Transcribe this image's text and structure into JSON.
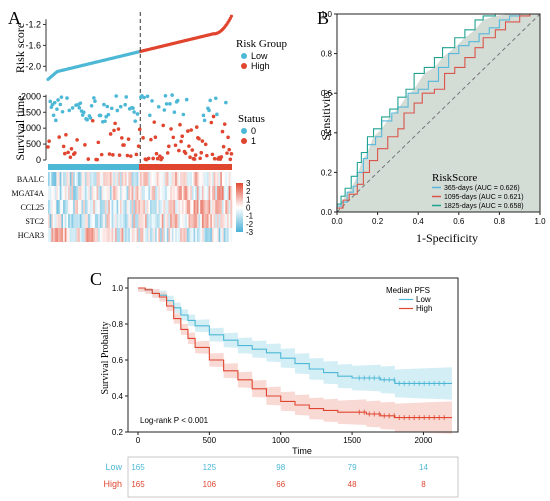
{
  "panels": {
    "a": "A",
    "b": "B",
    "c": "C"
  },
  "colors": {
    "low": "#4db8d6",
    "high": "#e0452f",
    "roc365": "#56b8dc",
    "roc1095": "#d9554a",
    "roc1825": "#20a290",
    "survLowBand": "#cdebf5",
    "survHighBand": "#f8d2cc",
    "heatLow": "#4ab0d7",
    "heatMid": "#ffffff",
    "heatHigh": "#e24a34",
    "rocFill": "#cfd8d2"
  },
  "chart_data": [
    {
      "type": "scatter",
      "panel": "A-top",
      "ylabel": "Risk score",
      "yticks": [
        "-1.2",
        "-1.6",
        "-2.0"
      ],
      "ylim": [
        -2.3,
        -1.0
      ],
      "n_samples": 330,
      "cutoff_index": 165,
      "legend_title": "Risk Group",
      "legend": [
        "Low",
        "High"
      ],
      "legend_position": "top-right"
    },
    {
      "type": "scatter",
      "panel": "A-middle",
      "ylabel": "Survival time",
      "yticks": [
        "2000",
        "1500",
        "1000",
        "500",
        "0"
      ],
      "ylim": [
        0,
        2200
      ],
      "legend_title": "Status",
      "legend": [
        "0",
        "1"
      ]
    },
    {
      "type": "heatmap",
      "panel": "A-bottom",
      "genes": [
        "BAALC",
        "MGAT4A",
        "CCL25",
        "STC2",
        "HCAR3"
      ],
      "scale_ticks": [
        "3",
        "2",
        "1",
        "0",
        "-1",
        "-2",
        "-3"
      ],
      "scale_range": [
        -3,
        3
      ]
    },
    {
      "type": "line",
      "panel": "B",
      "xlabel": "1-Specificity",
      "ylabel": "Sensitivity",
      "xticks": [
        "0.0",
        "0.2",
        "0.4",
        "0.6",
        "0.8",
        "1.0"
      ],
      "yticks": [
        "0.0",
        "0.2",
        "0.4",
        "0.6",
        "0.8",
        "1.0"
      ],
      "xlim": [
        0,
        1
      ],
      "ylim": [
        0,
        1
      ],
      "legend_title": "RiskScore",
      "legend_position": "bottom-right",
      "series": [
        {
          "name": "365-days (AUC = 0.626)",
          "points": [
            [
              0,
              0
            ],
            [
              0.02,
              0.03
            ],
            [
              0.05,
              0.05
            ],
            [
              0.08,
              0.1
            ],
            [
              0.1,
              0.13
            ],
            [
              0.13,
              0.2
            ],
            [
              0.15,
              0.27
            ],
            [
              0.19,
              0.34
            ],
            [
              0.22,
              0.38
            ],
            [
              0.27,
              0.46
            ],
            [
              0.3,
              0.5
            ],
            [
              0.35,
              0.53
            ],
            [
              0.4,
              0.6
            ],
            [
              0.45,
              0.62
            ],
            [
              0.5,
              0.66
            ],
            [
              0.55,
              0.73
            ],
            [
              0.6,
              0.8
            ],
            [
              0.65,
              0.84
            ],
            [
              0.7,
              0.86
            ],
            [
              0.75,
              0.9
            ],
            [
              0.8,
              0.93
            ],
            [
              0.85,
              0.97
            ],
            [
              0.9,
              0.99
            ],
            [
              1,
              1
            ]
          ]
        },
        {
          "name": "1095-days (AUC = 0.621)",
          "points": [
            [
              0,
              0
            ],
            [
              0.03,
              0.02
            ],
            [
              0.06,
              0.06
            ],
            [
              0.1,
              0.09
            ],
            [
              0.13,
              0.14
            ],
            [
              0.16,
              0.2
            ],
            [
              0.2,
              0.26
            ],
            [
              0.25,
              0.32
            ],
            [
              0.3,
              0.38
            ],
            [
              0.33,
              0.42
            ],
            [
              0.38,
              0.5
            ],
            [
              0.42,
              0.55
            ],
            [
              0.48,
              0.6
            ],
            [
              0.53,
              0.62
            ],
            [
              0.58,
              0.7
            ],
            [
              0.63,
              0.73
            ],
            [
              0.68,
              0.78
            ],
            [
              0.72,
              0.83
            ],
            [
              0.78,
              0.88
            ],
            [
              0.83,
              0.92
            ],
            [
              0.9,
              0.96
            ],
            [
              0.95,
              0.99
            ],
            [
              1,
              1
            ]
          ]
        },
        {
          "name": "1825-days (AUC = 0.658)",
          "points": [
            [
              0,
              0
            ],
            [
              0.02,
              0.04
            ],
            [
              0.04,
              0.08
            ],
            [
              0.07,
              0.12
            ],
            [
              0.1,
              0.18
            ],
            [
              0.12,
              0.25
            ],
            [
              0.15,
              0.3
            ],
            [
              0.18,
              0.38
            ],
            [
              0.22,
              0.42
            ],
            [
              0.26,
              0.48
            ],
            [
              0.3,
              0.52
            ],
            [
              0.34,
              0.58
            ],
            [
              0.38,
              0.62
            ],
            [
              0.43,
              0.7
            ],
            [
              0.48,
              0.73
            ],
            [
              0.52,
              0.78
            ],
            [
              0.58,
              0.83
            ],
            [
              0.63,
              0.88
            ],
            [
              0.68,
              0.92
            ],
            [
              0.72,
              0.97
            ],
            [
              0.78,
              0.99
            ],
            [
              0.85,
              1
            ],
            [
              1,
              1
            ]
          ]
        }
      ]
    },
    {
      "type": "line",
      "panel": "C",
      "xlabel": "Time",
      "ylabel": "Survival Probality",
      "xticks": [
        "0",
        "500",
        "1000",
        "1500",
        "2000"
      ],
      "yticks": [
        "1.0",
        "0.8",
        "0.6",
        "0.4",
        "0.2"
      ],
      "xlim": [
        0,
        2200
      ],
      "ylim": [
        0.2,
        1.0
      ],
      "legend_title": "Median PFS",
      "legend_position": "top-right",
      "annotation": "Log-rank P < 0.001",
      "series": [
        {
          "name": "Low",
          "points": [
            [
              0,
              1
            ],
            [
              50,
              0.99
            ],
            [
              100,
              0.97
            ],
            [
              150,
              0.96
            ],
            [
              200,
              0.93
            ],
            [
              250,
              0.89
            ],
            [
              300,
              0.85
            ],
            [
              350,
              0.82
            ],
            [
              400,
              0.79
            ],
            [
              500,
              0.74
            ],
            [
              600,
              0.71
            ],
            [
              700,
              0.68
            ],
            [
              800,
              0.66
            ],
            [
              900,
              0.64
            ],
            [
              1000,
              0.61
            ],
            [
              1100,
              0.58
            ],
            [
              1200,
              0.55
            ],
            [
              1300,
              0.53
            ],
            [
              1400,
              0.51
            ],
            [
              1500,
              0.5
            ],
            [
              1600,
              0.5
            ],
            [
              1700,
              0.49
            ],
            [
              1800,
              0.47
            ],
            [
              1900,
              0.47
            ],
            [
              2000,
              0.47
            ],
            [
              2200,
              0.47
            ]
          ]
        },
        {
          "name": "High",
          "points": [
            [
              0,
              1
            ],
            [
              50,
              0.99
            ],
            [
              100,
              0.97
            ],
            [
              150,
              0.95
            ],
            [
              200,
              0.9
            ],
            [
              250,
              0.83
            ],
            [
              300,
              0.77
            ],
            [
              350,
              0.72
            ],
            [
              400,
              0.67
            ],
            [
              500,
              0.6
            ],
            [
              600,
              0.54
            ],
            [
              700,
              0.49
            ],
            [
              800,
              0.44
            ],
            [
              900,
              0.4
            ],
            [
              1000,
              0.37
            ],
            [
              1100,
              0.35
            ],
            [
              1200,
              0.33
            ],
            [
              1300,
              0.32
            ],
            [
              1400,
              0.31
            ],
            [
              1500,
              0.31
            ],
            [
              1600,
              0.3
            ],
            [
              1700,
              0.29
            ],
            [
              1800,
              0.28
            ],
            [
              2000,
              0.28
            ],
            [
              2200,
              0.28
            ]
          ]
        }
      ]
    },
    {
      "type": "table",
      "panel": "C-risk-table",
      "columns": [
        "0",
        "500",
        "1000",
        "1500",
        "2000"
      ],
      "rows": [
        {
          "name": "Low",
          "values": [
            "165",
            "125",
            "98",
            "79",
            "14"
          ]
        },
        {
          "name": "High",
          "values": [
            "165",
            "106",
            "66",
            "48",
            "8"
          ]
        }
      ]
    }
  ]
}
